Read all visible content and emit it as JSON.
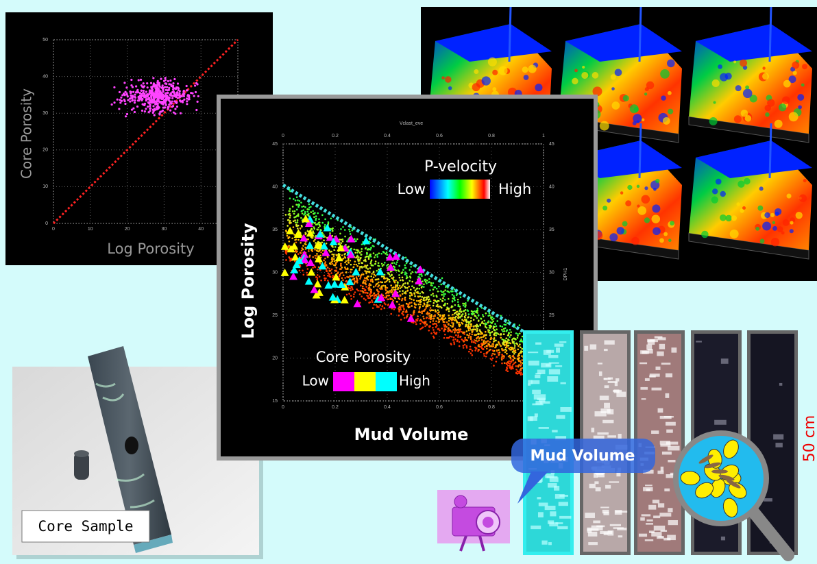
{
  "left_plot": {
    "y_label": "Core Porosity",
    "x_label": "Log Porosity",
    "ticks": [
      0,
      10,
      20,
      30,
      40,
      50
    ]
  },
  "main_plot": {
    "top_label": "Vclast_eve",
    "right_label": "DPH1",
    "y_label": "Log Porosity",
    "x_label": "Mud Volume",
    "xlim": [
      0,
      1
    ],
    "ylim": [
      15,
      45
    ],
    "xticks": [
      0,
      0.2,
      0.4,
      0.6,
      0.8,
      1
    ],
    "yticks": [
      15,
      20,
      25,
      30,
      35,
      40,
      45
    ],
    "velocity_legend": {
      "title": "P-velocity",
      "low": "Low",
      "high": "High"
    },
    "core_legend": {
      "title": "Core Porosity",
      "low": "Low",
      "high": "High",
      "colors": [
        "#ff00ff",
        "#ffff00",
        "#00ffff"
      ]
    }
  },
  "core_sample": {
    "label": "Core Sample"
  },
  "callout": "Mud Volume",
  "scale_label": "50 cm"
}
